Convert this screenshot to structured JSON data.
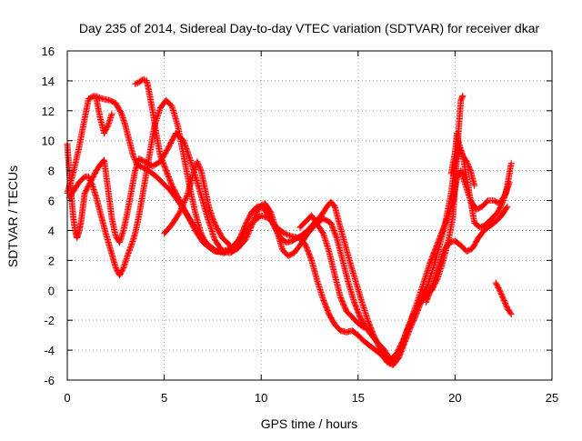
{
  "chart_data": {
    "type": "scatter",
    "title": "Day 235 of 2014, Sidereal Day-to-day VTEC variation (SDTVAR) for receiver dkar",
    "xlabel": "GPS time / hours",
    "ylabel": "SDTVAR / TECUs",
    "xlim": [
      0,
      25
    ],
    "ylim": [
      -6,
      16
    ],
    "xticks": [
      0,
      5,
      10,
      15,
      20,
      25
    ],
    "yticks": [
      -6,
      -4,
      -2,
      0,
      2,
      4,
      6,
      8,
      10,
      12,
      14,
      16
    ],
    "grid": true,
    "marker": "+",
    "color": "#ff0000",
    "series": [
      {
        "name": "track-1",
        "points": [
          [
            0.0,
            6.5
          ],
          [
            0.3,
            7.8
          ],
          [
            0.6,
            9.5
          ],
          [
            0.9,
            11.5
          ],
          [
            1.1,
            12.8
          ],
          [
            1.4,
            13.0
          ],
          [
            1.8,
            12.8
          ],
          [
            2.2,
            12.7
          ],
          [
            2.5,
            12.5
          ],
          [
            2.8,
            11.8
          ],
          [
            3.0,
            11.0
          ],
          [
            3.2,
            10.0
          ],
          [
            3.4,
            9.0
          ],
          [
            3.6,
            8.4
          ],
          [
            3.9,
            8.2
          ],
          [
            4.2,
            8.0
          ],
          [
            4.6,
            7.6
          ],
          [
            4.9,
            7.2
          ],
          [
            5.3,
            6.7
          ],
          [
            5.7,
            6.0
          ],
          [
            6.1,
            5.2
          ],
          [
            6.5,
            4.4
          ],
          [
            6.9,
            3.6
          ],
          [
            7.3,
            3.0
          ],
          [
            7.7,
            2.6
          ],
          [
            8.1,
            2.5
          ],
          [
            8.5,
            2.8
          ],
          [
            8.9,
            3.5
          ],
          [
            9.2,
            4.4
          ],
          [
            9.5,
            5.2
          ],
          [
            9.8,
            5.6
          ],
          [
            10.1,
            5.5
          ],
          [
            10.4,
            5.0
          ],
          [
            10.7,
            4.2
          ],
          [
            11.0,
            3.5
          ],
          [
            11.3,
            3.2
          ],
          [
            11.6,
            3.3
          ],
          [
            12.0,
            3.6
          ],
          [
            12.4,
            4.0
          ],
          [
            12.8,
            4.6
          ],
          [
            13.1,
            5.0
          ],
          [
            13.4,
            5.6
          ],
          [
            13.6,
            5.9
          ],
          [
            13.8,
            5.6
          ],
          [
            14.0,
            4.6
          ],
          [
            14.3,
            3.2
          ],
          [
            14.6,
            1.8
          ],
          [
            14.9,
            0.5
          ],
          [
            15.2,
            -0.8
          ],
          [
            15.5,
            -2.0
          ],
          [
            15.8,
            -3.0
          ],
          [
            16.1,
            -3.8
          ],
          [
            16.4,
            -4.4
          ],
          [
            16.7,
            -4.6
          ],
          [
            17.0,
            -4.2
          ],
          [
            17.3,
            -3.4
          ],
          [
            17.6,
            -2.4
          ],
          [
            17.9,
            -1.5
          ],
          [
            18.2,
            -0.8
          ],
          [
            18.5,
            -0.3
          ],
          [
            18.8,
            0.0
          ],
          [
            19.1,
            0.8
          ],
          [
            19.4,
            2.0
          ],
          [
            19.7,
            3.6
          ],
          [
            19.9,
            5.0
          ],
          [
            20.0,
            7.0
          ],
          [
            20.1,
            9.0
          ],
          [
            20.2,
            11.0
          ],
          [
            20.3,
            12.7
          ],
          [
            20.4,
            13.0
          ]
        ]
      },
      {
        "name": "track-2",
        "points": [
          [
            0.1,
            6.2
          ],
          [
            0.3,
            6.6
          ],
          [
            0.6,
            7.2
          ],
          [
            0.9,
            7.6
          ],
          [
            1.1,
            7.6
          ],
          [
            1.3,
            7.0
          ],
          [
            1.5,
            6.2
          ],
          [
            1.7,
            5.2
          ],
          [
            1.9,
            4.2
          ],
          [
            2.1,
            3.3
          ],
          [
            2.3,
            2.4
          ],
          [
            2.5,
            1.5
          ],
          [
            2.7,
            1.0
          ],
          [
            2.9,
            1.5
          ],
          [
            3.1,
            2.3
          ],
          [
            3.3,
            3.0
          ],
          [
            3.5,
            3.8
          ],
          [
            3.7,
            5.0
          ],
          [
            3.9,
            6.5
          ],
          [
            4.1,
            8.0
          ],
          [
            4.3,
            9.5
          ],
          [
            4.5,
            11.0
          ],
          [
            4.8,
            12.2
          ],
          [
            5.1,
            12.7
          ],
          [
            5.4,
            12.3
          ],
          [
            5.7,
            11.0
          ],
          [
            6.0,
            9.0
          ],
          [
            6.3,
            7.0
          ],
          [
            6.6,
            5.2
          ],
          [
            6.9,
            3.8
          ],
          [
            7.2,
            3.0
          ],
          [
            7.6,
            2.6
          ],
          [
            8.0,
            2.6
          ],
          [
            8.4,
            2.8
          ],
          [
            8.8,
            3.2
          ],
          [
            9.2,
            3.9
          ],
          [
            9.6,
            4.6
          ],
          [
            10.0,
            5.0
          ],
          [
            10.4,
            4.8
          ],
          [
            10.8,
            4.2
          ],
          [
            11.2,
            3.8
          ],
          [
            11.6,
            3.6
          ],
          [
            12.0,
            3.5
          ],
          [
            12.3,
            3.0
          ],
          [
            12.6,
            2.0
          ],
          [
            12.9,
            0.6
          ],
          [
            13.2,
            -0.6
          ],
          [
            13.5,
            -1.6
          ],
          [
            13.8,
            -2.3
          ],
          [
            14.1,
            -2.7
          ],
          [
            14.4,
            -2.8
          ],
          [
            14.7,
            -2.7
          ],
          [
            15.0,
            -3.0
          ],
          [
            15.3,
            -3.4
          ],
          [
            15.6,
            -3.7
          ],
          [
            15.9,
            -4.0
          ],
          [
            16.2,
            -4.3
          ],
          [
            16.5,
            -4.8
          ],
          [
            16.8,
            -5.0
          ],
          [
            17.1,
            -4.5
          ],
          [
            17.4,
            -3.5
          ],
          [
            17.7,
            -2.5
          ],
          [
            18.0,
            -1.6
          ],
          [
            18.3,
            -0.6
          ],
          [
            18.6,
            0.4
          ],
          [
            18.9,
            1.6
          ],
          [
            19.2,
            3.0
          ],
          [
            19.5,
            4.5
          ],
          [
            19.8,
            6.5
          ],
          [
            20.0,
            8.5
          ],
          [
            20.2,
            9.5
          ],
          [
            20.4,
            9.0
          ],
          [
            20.6,
            7.5
          ],
          [
            20.8,
            6.0
          ],
          [
            21.0,
            4.5
          ],
          [
            21.3,
            4.2
          ],
          [
            21.6,
            4.4
          ],
          [
            21.9,
            4.8
          ],
          [
            22.2,
            5.2
          ],
          [
            22.5,
            6.0
          ],
          [
            22.7,
            7.0
          ],
          [
            22.9,
            8.5
          ]
        ]
      },
      {
        "name": "track-3",
        "points": [
          [
            0.0,
            9.8
          ],
          [
            0.1,
            8.0
          ],
          [
            0.2,
            6.5
          ],
          [
            0.3,
            5.0
          ],
          [
            0.4,
            4.0
          ],
          [
            0.5,
            3.5
          ],
          [
            0.6,
            3.9
          ],
          [
            0.7,
            4.5
          ],
          [
            0.8,
            5.5
          ],
          [
            0.9,
            6.5
          ],
          [
            1.1,
            7.0
          ],
          [
            1.3,
            7.5
          ],
          [
            1.5,
            8.0
          ],
          [
            1.7,
            8.4
          ],
          [
            1.9,
            8.7
          ],
          [
            2.1,
            6.8
          ],
          [
            2.3,
            4.8
          ],
          [
            2.5,
            3.6
          ],
          [
            2.7,
            3.2
          ],
          [
            2.9,
            4.0
          ],
          [
            3.1,
            5.2
          ],
          [
            3.3,
            6.6
          ],
          [
            3.5,
            8.0
          ],
          [
            3.7,
            8.8
          ],
          [
            4.0,
            8.6
          ],
          [
            4.4,
            8.3
          ],
          [
            4.8,
            8.6
          ],
          [
            5.2,
            9.5
          ],
          [
            5.6,
            10.5
          ],
          [
            6.0,
            10.0
          ],
          [
            6.4,
            8.5
          ],
          [
            6.8,
            6.8
          ],
          [
            7.2,
            5.0
          ],
          [
            7.6,
            3.4
          ],
          [
            8.0,
            2.6
          ],
          [
            8.4,
            2.5
          ],
          [
            8.8,
            2.8
          ],
          [
            9.2,
            3.4
          ],
          [
            9.6,
            4.6
          ],
          [
            9.9,
            5.6
          ],
          [
            10.2,
            5.8
          ],
          [
            10.5,
            5.2
          ],
          [
            10.8,
            4.0
          ],
          [
            11.1,
            2.7
          ],
          [
            11.4,
            2.3
          ],
          [
            11.7,
            2.5
          ],
          [
            12.0,
            3.0
          ],
          [
            12.4,
            3.8
          ],
          [
            12.8,
            4.4
          ],
          [
            13.2,
            4.8
          ],
          [
            13.6,
            4.5
          ],
          [
            13.9,
            3.5
          ],
          [
            14.2,
            2.0
          ],
          [
            14.5,
            0.5
          ],
          [
            14.8,
            -0.8
          ],
          [
            15.1,
            -1.8
          ],
          [
            15.4,
            -2.5
          ],
          [
            15.7,
            -3.0
          ],
          [
            16.0,
            -3.5
          ],
          [
            16.3,
            -3.9
          ],
          [
            16.6,
            -4.5
          ],
          [
            16.9,
            -4.8
          ],
          [
            17.2,
            -4.0
          ],
          [
            17.5,
            -2.8
          ],
          [
            17.8,
            -1.7
          ],
          [
            18.1,
            -0.6
          ],
          [
            18.4,
            0.6
          ],
          [
            18.7,
            1.8
          ],
          [
            19.0,
            2.8
          ],
          [
            19.3,
            3.8
          ],
          [
            19.6,
            4.8
          ],
          [
            19.9,
            6.0
          ],
          [
            20.1,
            7.5
          ],
          [
            20.3,
            8.0
          ],
          [
            20.5,
            7.2
          ],
          [
            20.8,
            6.0
          ],
          [
            21.1,
            5.4
          ],
          [
            21.4,
            5.6
          ],
          [
            21.7,
            6.0
          ],
          [
            22.0,
            6.0
          ],
          [
            22.3,
            5.8
          ],
          [
            22.6,
            6.4
          ],
          [
            22.8,
            7.2
          ]
        ]
      },
      {
        "name": "track-4",
        "points": [
          [
            3.5,
            13.8
          ],
          [
            3.7,
            13.9
          ],
          [
            3.9,
            14.1
          ],
          [
            4.1,
            14.0
          ],
          [
            4.2,
            13.4
          ],
          [
            4.4,
            12.0
          ],
          [
            4.6,
            10.4
          ],
          [
            4.8,
            9.0
          ],
          [
            5.1,
            8.0
          ],
          [
            5.4,
            7.0
          ],
          [
            5.8,
            6.0
          ],
          [
            6.2,
            5.0
          ],
          [
            6.6,
            4.0
          ],
          [
            7.0,
            3.2
          ],
          [
            7.4,
            2.8
          ]
        ]
      },
      {
        "name": "track-5",
        "points": [
          [
            5.0,
            3.8
          ],
          [
            5.4,
            4.4
          ],
          [
            5.8,
            5.2
          ],
          [
            6.2,
            6.4
          ],
          [
            6.5,
            7.8
          ],
          [
            6.7,
            8.6
          ],
          [
            6.9,
            8.0
          ],
          [
            7.1,
            6.8
          ],
          [
            7.3,
            5.6
          ],
          [
            7.5,
            4.8
          ],
          [
            7.7,
            4.2
          ],
          [
            8.0,
            3.5
          ],
          [
            8.4,
            3.0
          ]
        ]
      },
      {
        "name": "track-6",
        "points": [
          [
            1.5,
            12.8
          ],
          [
            1.7,
            11.5
          ],
          [
            1.9,
            10.5
          ],
          [
            2.1,
            11.0
          ],
          [
            2.3,
            11.8
          ]
        ]
      },
      {
        "name": "track-7",
        "points": [
          [
            18.5,
            -0.8
          ],
          [
            18.8,
            0.2
          ],
          [
            19.1,
            1.4
          ],
          [
            19.4,
            2.6
          ],
          [
            19.7,
            3.2
          ],
          [
            20.0,
            3.3
          ],
          [
            20.3,
            3.0
          ],
          [
            20.6,
            2.6
          ],
          [
            20.9,
            2.8
          ],
          [
            21.2,
            3.5
          ],
          [
            21.5,
            4.0
          ],
          [
            21.8,
            4.3
          ],
          [
            22.1,
            4.6
          ],
          [
            22.4,
            5.0
          ],
          [
            22.7,
            5.6
          ]
        ]
      },
      {
        "name": "track-8",
        "points": [
          [
            22.1,
            0.5
          ],
          [
            22.3,
            0.0
          ],
          [
            22.5,
            -0.6
          ],
          [
            22.7,
            -1.2
          ],
          [
            22.9,
            -1.6
          ]
        ]
      },
      {
        "name": "track-9",
        "points": [
          [
            19.8,
            7.8
          ],
          [
            20.0,
            9.2
          ],
          [
            20.1,
            10.5
          ],
          [
            20.2,
            9.8
          ],
          [
            20.4,
            9.0
          ],
          [
            20.6,
            8.6
          ],
          [
            20.8,
            8.0
          ],
          [
            21.0,
            7.0
          ]
        ]
      },
      {
        "name": "track-10",
        "points": [
          [
            12.0,
            4.2
          ],
          [
            12.3,
            4.6
          ],
          [
            12.6,
            5.0
          ],
          [
            12.9,
            4.4
          ],
          [
            13.2,
            3.8
          ],
          [
            13.5,
            2.6
          ],
          [
            13.8,
            1.0
          ],
          [
            14.1,
            -0.5
          ],
          [
            14.4,
            -1.4
          ],
          [
            14.7,
            -1.8
          ],
          [
            15.0,
            -2.2
          ],
          [
            15.3,
            -2.5
          ]
        ]
      }
    ]
  }
}
